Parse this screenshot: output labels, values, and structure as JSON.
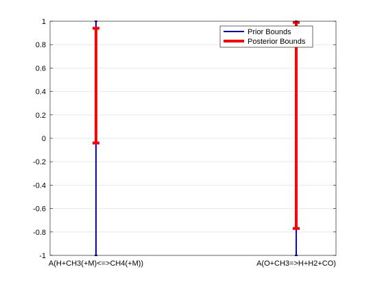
{
  "chart_data": {
    "type": "errorbar",
    "categories": [
      "A(H+CH3(+M)<=>CH4(+M))",
      "A(O+CH3=>H+H2+CO)"
    ],
    "ylim": [
      -1,
      1
    ],
    "yticks": [
      1,
      0.8,
      0.6,
      0.4,
      0.2,
      0,
      -0.2,
      -0.4,
      -0.6,
      -0.8,
      -1
    ],
    "ytick_labels": [
      "1",
      "0.8",
      "0.6",
      "0.4",
      "0.2",
      "0",
      "-0.2",
      "-0.4",
      "-0.6",
      "-0.8",
      "-1"
    ],
    "grid": "horizontal",
    "legend_position": "top-right",
    "series": [
      {
        "name": "Prior Bounds",
        "color": "#0000ff",
        "intervals": [
          [
            -1,
            1
          ],
          [
            -1,
            1
          ]
        ]
      },
      {
        "name": "Posterior Bounds",
        "color": "#ff0000",
        "intervals": [
          [
            -0.04,
            0.94
          ],
          [
            -0.77,
            0.99
          ]
        ]
      }
    ]
  }
}
